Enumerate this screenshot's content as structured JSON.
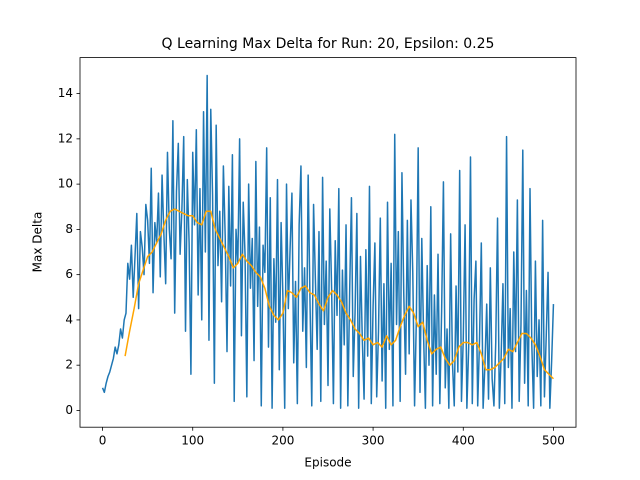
{
  "chart_data": {
    "type": "line",
    "title": "Q Learning Max Delta for Run: 20, Epsilon: 0.25",
    "x_label": "Episode",
    "y_label": "Max Delta",
    "xlim": [
      -25,
      525
    ],
    "ylim": [
      -0.74,
      15.59
    ],
    "xticks": [
      0,
      100,
      200,
      300,
      400,
      500
    ],
    "yticks": [
      0,
      2,
      4,
      6,
      8,
      10,
      12,
      14
    ],
    "series": [
      {
        "color": "#1f77b4",
        "x": [
          0,
          2,
          4,
          6,
          8,
          10,
          12,
          14,
          16,
          18,
          20,
          22,
          24,
          26,
          28,
          30,
          32,
          34,
          36,
          38,
          40,
          42,
          44,
          46,
          48,
          50,
          52,
          54,
          56,
          58,
          60,
          62,
          64,
          66,
          68,
          70,
          72,
          74,
          76,
          78,
          80,
          82,
          84,
          86,
          88,
          90,
          92,
          94,
          96,
          98,
          100,
          102,
          104,
          106,
          108,
          110,
          112,
          114,
          116,
          118,
          120,
          122,
          124,
          126,
          128,
          130,
          132,
          134,
          136,
          138,
          140,
          142,
          144,
          146,
          148,
          150,
          152,
          154,
          156,
          158,
          160,
          162,
          164,
          166,
          168,
          170,
          172,
          174,
          176,
          178,
          180,
          182,
          184,
          186,
          188,
          190,
          192,
          194,
          196,
          198,
          200,
          202,
          204,
          206,
          208,
          210,
          212,
          214,
          216,
          218,
          220,
          222,
          224,
          226,
          228,
          230,
          232,
          234,
          236,
          238,
          240,
          242,
          244,
          246,
          248,
          250,
          252,
          254,
          256,
          258,
          260,
          262,
          264,
          266,
          268,
          270,
          272,
          274,
          276,
          278,
          280,
          282,
          284,
          286,
          288,
          290,
          292,
          294,
          296,
          298,
          300,
          302,
          304,
          306,
          308,
          310,
          312,
          314,
          316,
          318,
          320,
          322,
          324,
          326,
          328,
          330,
          332,
          334,
          336,
          338,
          340,
          342,
          344,
          346,
          348,
          350,
          352,
          354,
          356,
          358,
          360,
          362,
          364,
          366,
          368,
          370,
          372,
          374,
          376,
          378,
          380,
          382,
          384,
          386,
          388,
          390,
          392,
          394,
          396,
          398,
          400,
          402,
          404,
          406,
          408,
          410,
          412,
          414,
          416,
          418,
          420,
          422,
          424,
          426,
          428,
          430,
          432,
          434,
          436,
          438,
          440,
          442,
          444,
          446,
          448,
          450,
          452,
          454,
          456,
          458,
          460,
          462,
          464,
          466,
          468,
          470,
          472,
          474,
          476,
          478,
          480,
          482,
          484,
          486,
          488,
          490,
          492,
          494,
          496,
          498,
          500
        ],
        "values": [
          1.0,
          0.8,
          1.2,
          1.5,
          1.7,
          2.0,
          2.3,
          2.8,
          2.5,
          2.9,
          3.6,
          3.2,
          4.0,
          4.3,
          6.5,
          5.8,
          7.3,
          5.0,
          6.8,
          8.7,
          4.5,
          7.9,
          7.2,
          6.0,
          9.1,
          8.4,
          6.5,
          10.7,
          5.2,
          8.3,
          7.4,
          9.6,
          5.9,
          10.4,
          7.8,
          5.6,
          11.4,
          8.0,
          6.7,
          12.8,
          4.3,
          9.7,
          11.8,
          6.9,
          8.9,
          12.1,
          3.5,
          10.2,
          7.4,
          1.6,
          11.4,
          8.2,
          12.4,
          5.1,
          9.8,
          4.0,
          13.2,
          7.0,
          14.8,
          3.1,
          13.3,
          9.5,
          1.2,
          12.6,
          6.4,
          8.8,
          4.8,
          10.8,
          7.7,
          2.6,
          9.9,
          5.5,
          11.3,
          0.4,
          8.0,
          6.5,
          12.0,
          3.3,
          9.2,
          6.9,
          0.6,
          10.0,
          5.4,
          7.6,
          2.2,
          11.0,
          4.6,
          8.1,
          0.2,
          7.3,
          6.1,
          11.6,
          2.8,
          9.4,
          0.1,
          6.7,
          3.9,
          10.2,
          1.8,
          8.3,
          5.0,
          0.1,
          10.0,
          4.5,
          7.2,
          9.6,
          2.1,
          5.7,
          0.3,
          8.2,
          10.8,
          3.5,
          6.3,
          1.9,
          10.4,
          4.9,
          0.2,
          9.1,
          5.8,
          2.7,
          7.9,
          0.4,
          10.3,
          3.8,
          6.6,
          1.1,
          8.9,
          5.4,
          0.3,
          7.5,
          4.2,
          9.8,
          0.1,
          6.2,
          2.9,
          8.2,
          0.2,
          5.2,
          9.4,
          1.5,
          4.3,
          8.7,
          0.1,
          6.8,
          3.2,
          0.5,
          7.1,
          2.4,
          9.9,
          0.3,
          4.6,
          7.4,
          0.6,
          3.5,
          8.5,
          1.3,
          5.6,
          0.1,
          9.2,
          2.7,
          6.5,
          0.2,
          12.2,
          3.8,
          7.9,
          0.4,
          10.5,
          5.2,
          1.6,
          8.4,
          2.5,
          9.3,
          6.1,
          0.2,
          4.1,
          11.6,
          0.8,
          7.6,
          3.3,
          0.1,
          6.4,
          2.0,
          9.0,
          0.2,
          5.1,
          1.6,
          6.9,
          0.3,
          4.4,
          10.1,
          1.0,
          3.6,
          0.1,
          7.8,
          2.1,
          0.2,
          5.5,
          1.7,
          10.6,
          0.4,
          3.2,
          8.2,
          0.1,
          2.8,
          11.2,
          0.3,
          4.9,
          6.6,
          0.2,
          3.1,
          7.4,
          0.1,
          2.0,
          4.7,
          0.5,
          6.3,
          1.4,
          0.2,
          3.0,
          8.5,
          0.1,
          2.4,
          5.6,
          0.3,
          12.1,
          1.9,
          4.5,
          0.1,
          7.0,
          2.6,
          9.3,
          0.4,
          3.8,
          11.5,
          1.2,
          5.3,
          0.2,
          9.8,
          2.9,
          0.1,
          6.6,
          1.5,
          4.0,
          0.2,
          8.4,
          0.6,
          3.3,
          6.1,
          0.1,
          2.2,
          4.7
        ]
      },
      {
        "color": "#ffa500",
        "x": [
          25,
          30,
          35,
          40,
          45,
          50,
          55,
          60,
          65,
          70,
          75,
          80,
          85,
          90,
          95,
          100,
          105,
          110,
          115,
          120,
          125,
          130,
          135,
          140,
          145,
          150,
          155,
          160,
          165,
          170,
          175,
          180,
          185,
          190,
          195,
          200,
          205,
          210,
          215,
          220,
          225,
          230,
          235,
          240,
          245,
          250,
          255,
          260,
          265,
          270,
          275,
          280,
          285,
          290,
          295,
          300,
          305,
          310,
          315,
          320,
          325,
          330,
          335,
          340,
          345,
          350,
          355,
          360,
          365,
          370,
          375,
          380,
          385,
          390,
          395,
          400,
          405,
          410,
          415,
          420,
          425,
          430,
          435,
          440,
          445,
          450,
          455,
          460,
          465,
          470,
          475,
          480,
          485,
          490,
          495,
          500
        ],
        "values": [
          2.4,
          3.5,
          4.5,
          5.6,
          6.2,
          6.8,
          7.0,
          7.4,
          7.8,
          8.4,
          8.8,
          8.9,
          8.8,
          8.7,
          8.6,
          8.6,
          8.3,
          8.2,
          8.8,
          8.8,
          8.0,
          7.6,
          7.2,
          6.8,
          6.3,
          6.5,
          6.9,
          6.6,
          6.4,
          6.1,
          5.9,
          5.4,
          4.6,
          4.2,
          4.0,
          4.3,
          5.3,
          5.2,
          5.0,
          5.4,
          5.5,
          5.2,
          5.1,
          4.7,
          4.4,
          5.0,
          5.3,
          5.1,
          4.8,
          4.3,
          4.0,
          3.6,
          3.4,
          3.1,
          3.2,
          2.9,
          3.0,
          2.8,
          3.3,
          2.9,
          3.1,
          3.7,
          4.2,
          4.6,
          4.3,
          3.7,
          3.9,
          3.1,
          2.5,
          2.7,
          2.8,
          2.3,
          2.0,
          2.2,
          2.8,
          3.0,
          3.0,
          2.9,
          3.0,
          2.5,
          1.8,
          1.8,
          1.9,
          2.1,
          2.3,
          2.7,
          2.6,
          3.0,
          3.4,
          3.4,
          3.2,
          2.9,
          2.4,
          1.8,
          1.6,
          1.4
        ]
      }
    ]
  }
}
